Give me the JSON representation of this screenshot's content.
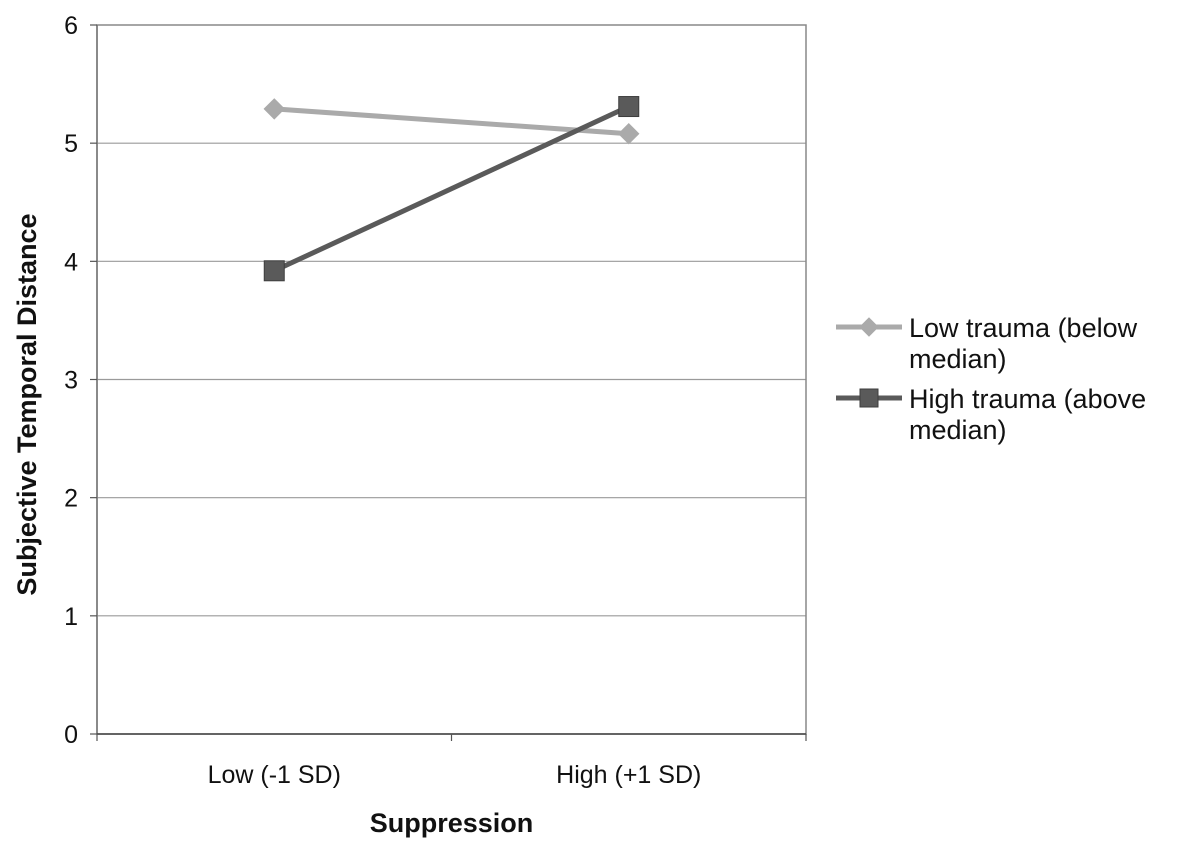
{
  "chart_data": {
    "type": "line",
    "title": "",
    "xlabel": "Suppression",
    "ylabel": "Subjective Temporal Distance",
    "categories": [
      "Low (-1 SD)",
      "High (+1 SD)"
    ],
    "ylim": [
      0,
      6
    ],
    "yticks": [
      "0",
      "1",
      "2",
      "3",
      "4",
      "5",
      "6"
    ],
    "grid": true,
    "legend_position": "right",
    "series": [
      {
        "name_lines": [
          "Low trauma (below",
          "median)"
        ],
        "values": [
          5.29,
          5.08
        ],
        "marker": "diamond",
        "color": "#aaaaaa"
      },
      {
        "name_lines": [
          "High trauma (above",
          "median)"
        ],
        "values": [
          3.92,
          5.31
        ],
        "marker": "square",
        "color": "#5a5a5a"
      }
    ]
  }
}
